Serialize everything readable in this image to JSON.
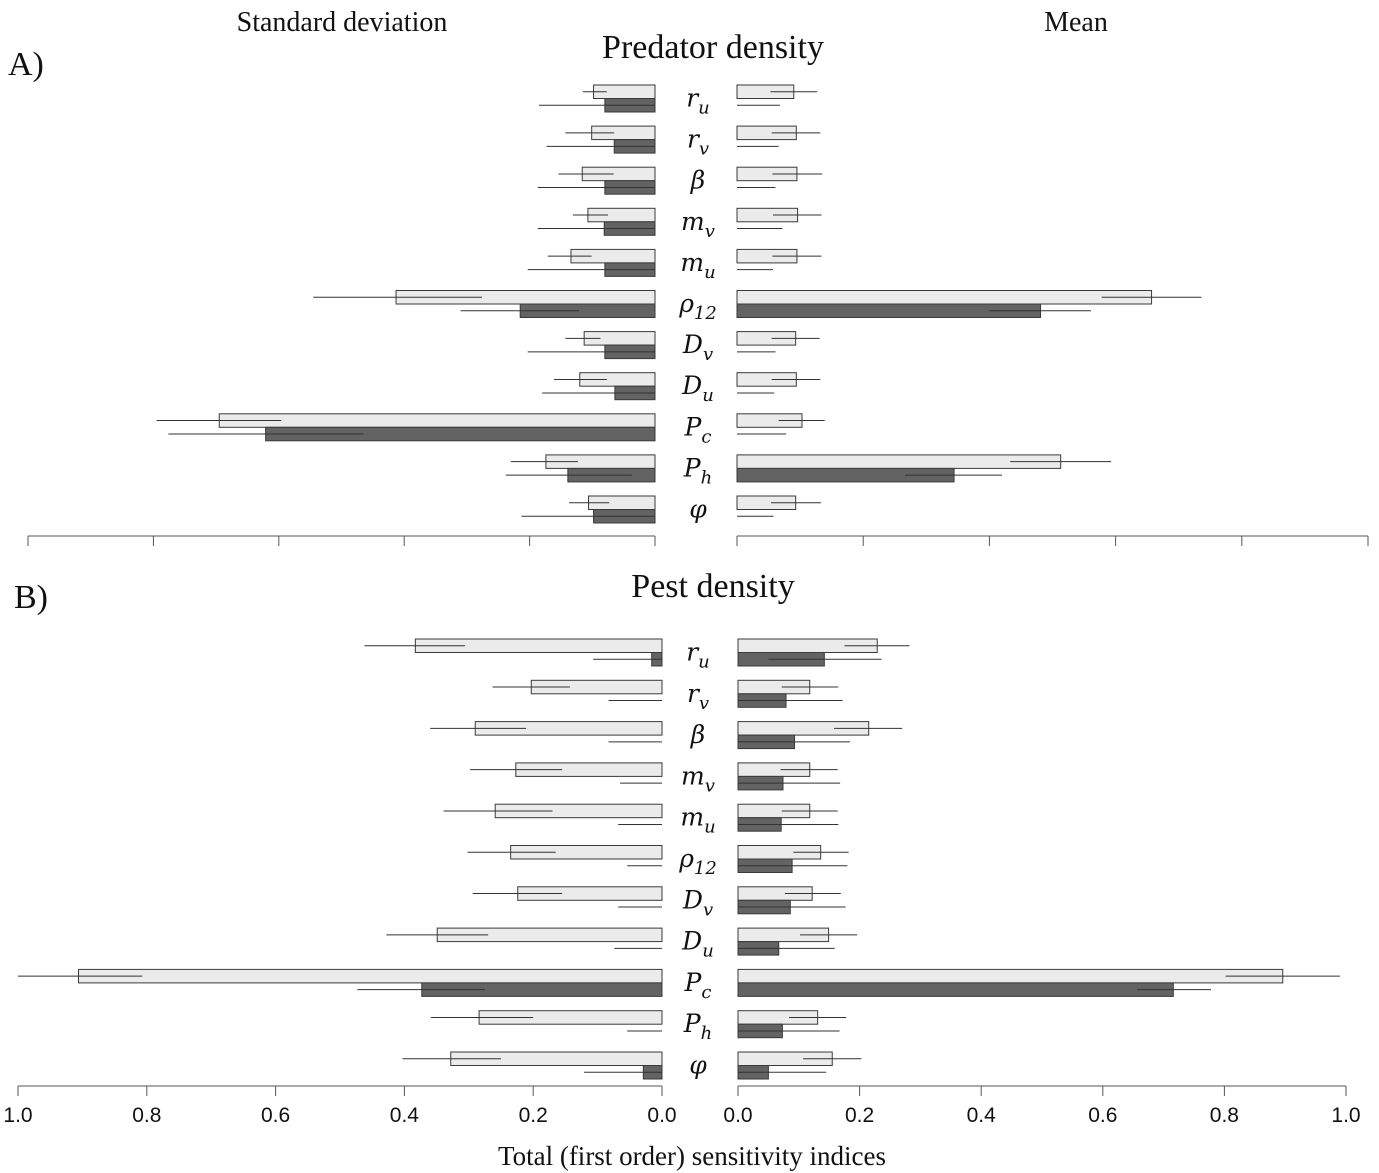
{
  "figure": {
    "left_header": "Standard deviation",
    "right_header": "Mean",
    "xlabel": "Total (first order) sensitivity indices",
    "x_ticks_left": [
      "1.0",
      "0.8",
      "0.6",
      "0.4",
      "0.2",
      "0.0"
    ],
    "x_ticks_right": [
      "0.0",
      "0.2",
      "0.4",
      "0.6",
      "0.8",
      "1.0"
    ]
  },
  "panels": [
    {
      "label": "A)",
      "title": "Predator density",
      "params": [
        {
          "base": "r",
          "sub": "u"
        },
        {
          "base": "r",
          "sub": "v"
        },
        {
          "base": "β",
          "sub": ""
        },
        {
          "base": "m",
          "sub": "v"
        },
        {
          "base": "m",
          "sub": "u"
        },
        {
          "base": "ρ",
          "sub": "12"
        },
        {
          "base": "D",
          "sub": "v"
        },
        {
          "base": "D",
          "sub": "u"
        },
        {
          "base": "P",
          "sub": "c"
        },
        {
          "base": "P",
          "sub": "h"
        },
        {
          "base": "φ",
          "sub": ""
        }
      ]
    },
    {
      "label": "B)",
      "title": "Pest  density",
      "params": [
        {
          "base": "r",
          "sub": "u"
        },
        {
          "base": "r",
          "sub": "v"
        },
        {
          "base": "β",
          "sub": ""
        },
        {
          "base": "m",
          "sub": "v"
        },
        {
          "base": "m",
          "sub": "u"
        },
        {
          "base": "ρ",
          "sub": "12"
        },
        {
          "base": "D",
          "sub": "v"
        },
        {
          "base": "D",
          "sub": "u"
        },
        {
          "base": "P",
          "sub": "c"
        },
        {
          "base": "P",
          "sub": "h"
        },
        {
          "base": "φ",
          "sub": ""
        }
      ]
    }
  ],
  "colors": {
    "total": "#ebebeb",
    "first_order": "#636363",
    "outline": "#3a3a3a",
    "axis": "#555555",
    "errorbar": "#333333"
  },
  "chart_data": [
    {
      "type": "bar",
      "orientation": "horizontal",
      "panel": "A",
      "title": "Predator density",
      "subtitle": "Standard deviation",
      "xlabel": "Total (first order) sensitivity indices",
      "direction": "reversed",
      "xlim": [
        1.0,
        0.0
      ],
      "categories": [
        "r_u",
        "r_v",
        "β",
        "m_v",
        "m_u",
        "ρ_12",
        "D_v",
        "D_u",
        "P_c",
        "P_h",
        "φ"
      ],
      "series": [
        {
          "values": [
            0.098,
            0.101,
            0.116,
            0.107,
            0.134,
            0.413,
            0.113,
            0.12,
            0.695,
            0.174,
            0.106
          ],
          "error": [
            [
              0.077,
              0.115
            ],
            [
              0.065,
              0.143
            ],
            [
              0.066,
              0.154
            ],
            [
              0.075,
              0.131
            ],
            [
              0.101,
              0.171
            ],
            [
              0.276,
              0.545
            ],
            [
              0.087,
              0.143
            ],
            [
              0.077,
              0.161
            ],
            [
              0.596,
              0.795
            ],
            [
              0.123,
              0.23
            ],
            [
              0.073,
              0.137
            ]
          ]
        },
        {
          "values": [
            0.08,
            0.065,
            0.08,
            0.081,
            0.08,
            0.215,
            0.08,
            0.064,
            0.621,
            0.139,
            0.098
          ],
          "error": [
            [
              0.0,
              0.185
            ],
            [
              0.0,
              0.173
            ],
            [
              0.0,
              0.187
            ],
            [
              0.0,
              0.187
            ],
            [
              0.0,
              0.203
            ],
            [
              0.121,
              0.31
            ],
            [
              0.0,
              0.203
            ],
            [
              0.0,
              0.18
            ],
            [
              0.465,
              0.776
            ],
            [
              0.037,
              0.238
            ],
            [
              0.0,
              0.213
            ]
          ]
        }
      ]
    },
    {
      "type": "bar",
      "orientation": "horizontal",
      "panel": "A",
      "title": "Predator density",
      "subtitle": "Mean",
      "xlabel": "Total (first order) sensitivity indices",
      "xlim": [
        0.0,
        1.0
      ],
      "categories": [
        "r_u",
        "r_v",
        "β",
        "m_v",
        "m_u",
        "ρ_12",
        "D_v",
        "D_u",
        "P_c",
        "P_h",
        "φ"
      ],
      "series": [
        {
          "values": [
            0.09,
            0.094,
            0.095,
            0.096,
            0.095,
            0.657,
            0.093,
            0.094,
            0.103,
            0.513,
            0.093
          ],
          "error": [
            [
              0.053,
              0.127
            ],
            [
              0.055,
              0.132
            ],
            [
              0.056,
              0.135
            ],
            [
              0.057,
              0.134
            ],
            [
              0.056,
              0.134
            ],
            [
              0.578,
              0.736
            ],
            [
              0.055,
              0.131
            ],
            [
              0.055,
              0.132
            ],
            [
              0.066,
              0.139
            ],
            [
              0.433,
              0.593
            ],
            [
              0.054,
              0.133
            ]
          ]
        },
        {
          "values": [
            0.0,
            0.0,
            0.0,
            0.0,
            0.0,
            0.481,
            0.0,
            0.0,
            0.0,
            0.344,
            0.0
          ],
          "error": [
            [
              0.0,
              0.068
            ],
            [
              0.0,
              0.066
            ],
            [
              0.0,
              0.061
            ],
            [
              0.0,
              0.072
            ],
            [
              0.0,
              0.057
            ],
            [
              0.4,
              0.561
            ],
            [
              0.0,
              0.061
            ],
            [
              0.0,
              0.059
            ],
            [
              0.0,
              0.078
            ],
            [
              0.266,
              0.42
            ],
            [
              0.0,
              0.058
            ]
          ]
        }
      ]
    },
    {
      "type": "bar",
      "orientation": "horizontal",
      "panel": "B",
      "title": "Pest  density",
      "subtitle": "Standard deviation",
      "xlabel": "Total (first order) sensitivity indices",
      "direction": "reversed",
      "xlim": [
        1.0,
        0.0
      ],
      "categories": [
        "r_u",
        "r_v",
        "β",
        "m_v",
        "m_u",
        "ρ_12",
        "D_v",
        "D_u",
        "P_c",
        "P_h",
        "φ"
      ],
      "series": [
        {
          "values": [
            0.383,
            0.203,
            0.29,
            0.227,
            0.259,
            0.235,
            0.224,
            0.349,
            0.906,
            0.284,
            0.328
          ],
          "error": [
            [
              0.306,
              0.462
            ],
            [
              0.143,
              0.263
            ],
            [
              0.211,
              0.36
            ],
            [
              0.155,
              0.298
            ],
            [
              0.17,
              0.339
            ],
            [
              0.165,
              0.302
            ],
            [
              0.155,
              0.294
            ],
            [
              0.27,
              0.428
            ],
            [
              0.807,
              1.0
            ],
            [
              0.2,
              0.359
            ],
            [
              0.25,
              0.403
            ]
          ]
        },
        {
          "values": [
            0.016,
            0.0,
            0.0,
            0.0,
            0.0,
            0.0,
            0.0,
            0.0,
            0.373,
            0.0,
            0.029
          ],
          "error": [
            [
              0.0,
              0.107
            ],
            [
              0.0,
              0.083
            ],
            [
              0.0,
              0.083
            ],
            [
              0.0,
              0.065
            ],
            [
              0.0,
              0.068
            ],
            [
              0.0,
              0.054
            ],
            [
              0.0,
              0.068
            ],
            [
              0.0,
              0.074
            ],
            [
              0.275,
              0.473
            ],
            [
              0.0,
              0.054
            ],
            [
              0.0,
              0.121
            ]
          ]
        }
      ]
    },
    {
      "type": "bar",
      "orientation": "horizontal",
      "panel": "B",
      "title": "Pest  density",
      "subtitle": "Mean",
      "xlabel": "Total (first order) sensitivity indices",
      "xlim": [
        0.0,
        1.0
      ],
      "categories": [
        "r_u",
        "r_v",
        "β",
        "m_v",
        "m_u",
        "ρ_12",
        "D_v",
        "D_u",
        "P_c",
        "P_h",
        "φ"
      ],
      "series": [
        {
          "values": [
            0.229,
            0.118,
            0.215,
            0.118,
            0.118,
            0.136,
            0.122,
            0.149,
            0.896,
            0.131,
            0.155
          ],
          "error": [
            [
              0.175,
              0.282
            ],
            [
              0.072,
              0.165
            ],
            [
              0.158,
              0.27
            ],
            [
              0.07,
              0.164
            ],
            [
              0.072,
              0.164
            ],
            [
              0.091,
              0.182
            ],
            [
              0.077,
              0.169
            ],
            [
              0.102,
              0.196
            ],
            [
              0.802,
              0.99
            ],
            [
              0.084,
              0.178
            ],
            [
              0.107,
              0.203
            ]
          ]
        },
        {
          "values": [
            0.142,
            0.079,
            0.093,
            0.074,
            0.071,
            0.089,
            0.086,
            0.067,
            0.716,
            0.073,
            0.05
          ],
          "error": [
            [
              0.05,
              0.236
            ],
            [
              0.0,
              0.172
            ],
            [
              0.0,
              0.184
            ],
            [
              0.0,
              0.168
            ],
            [
              0.0,
              0.165
            ],
            [
              0.0,
              0.18
            ],
            [
              0.0,
              0.177
            ],
            [
              0.0,
              0.159
            ],
            [
              0.656,
              0.778
            ],
            [
              0.0,
              0.167
            ],
            [
              0.0,
              0.145
            ]
          ]
        }
      ]
    }
  ]
}
